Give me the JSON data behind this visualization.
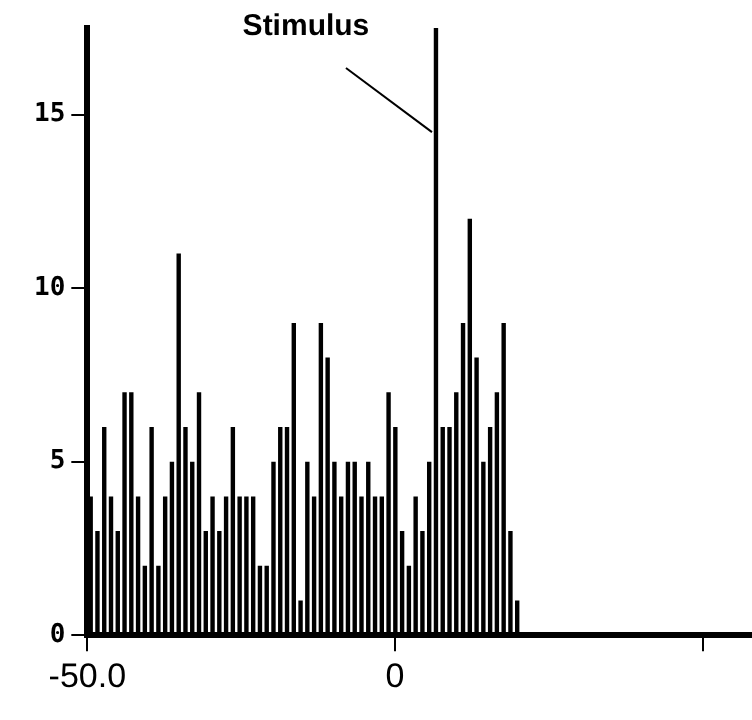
{
  "chart_data": {
    "type": "histogram",
    "bins": [
      -50,
      -48.9,
      -47.8,
      -46.7,
      -45.6,
      -44.5,
      -43.4,
      -42.3,
      -41.2,
      -40.1,
      -39,
      -37.9,
      -36.8,
      -35.7,
      -34.6,
      -33.5,
      -32.4,
      -31.3,
      -30.2,
      -29.1,
      -28,
      -26.9,
      -25.8,
      -24.7,
      -23.6,
      -22.5,
      -21.4,
      -20.3,
      -19.2,
      -18.1,
      -17,
      -15.9,
      -14.8,
      -13.7,
      -12.6,
      -11.5,
      -10.4,
      -9.3,
      -8.2,
      -7.1,
      -6,
      -4.9,
      -3.8,
      -2.7,
      -1.6,
      -0.5,
      0.6,
      1.7,
      2.8,
      3.9,
      5,
      6.1,
      7.2,
      8.3,
      9.4,
      10.5,
      11.6,
      12.7,
      13.8,
      14.9,
      16,
      17.1,
      18.2,
      19.3,
      20.4
    ],
    "values": [
      4,
      3,
      6,
      4,
      3,
      7,
      7,
      4,
      2,
      6,
      2,
      4,
      5,
      11,
      6,
      5,
      7,
      3,
      4,
      3,
      4,
      6,
      4,
      4,
      4,
      2,
      2,
      5,
      6,
      6,
      9,
      1,
      5,
      4,
      9,
      8,
      5,
      4,
      5,
      5,
      4,
      5,
      4,
      4,
      7,
      6,
      3,
      2,
      4,
      3,
      5,
      17.5,
      6,
      6,
      7,
      9,
      12,
      8,
      5,
      6,
      7,
      9,
      3,
      1
    ],
    "color": "#000000",
    "xlim": [
      -50,
      58
    ],
    "xticks": [
      {
        "value": -50,
        "label": "-50.0"
      },
      {
        "value": 0,
        "label": "0"
      },
      {
        "value": 50,
        "label": null
      }
    ],
    "ylim": [
      0,
      17.5
    ],
    "yticks": [
      {
        "value": 0,
        "label": "0"
      },
      5,
      10,
      15
    ],
    "annotations": [
      {
        "text": "Stimulus",
        "x": 6.65,
        "y": 14.5
      }
    ],
    "grid": false,
    "legend": false
  }
}
